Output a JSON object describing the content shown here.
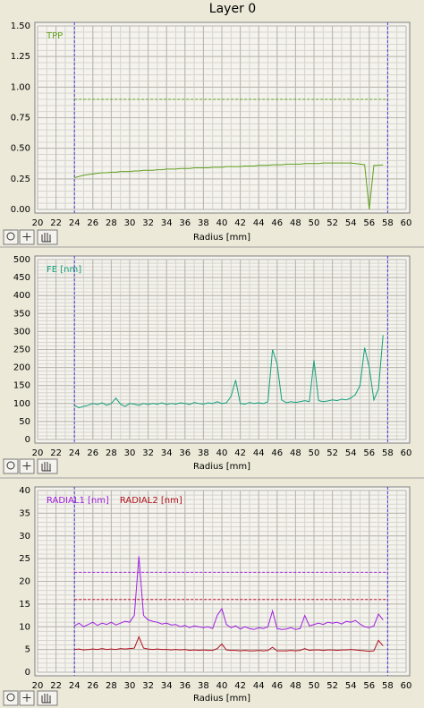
{
  "window": {
    "title": "Layer 0"
  },
  "chart_data": [
    {
      "type": "line",
      "x_label": "Radius [mm]",
      "grid": true,
      "xminor": 1,
      "yminor": 0.05,
      "xlim": [
        20,
        60
      ],
      "xticks": [
        20,
        22,
        24,
        26,
        28,
        30,
        32,
        34,
        36,
        38,
        40,
        42,
        44,
        46,
        48,
        50,
        52,
        54,
        56,
        58,
        60
      ],
      "ylim": [
        0,
        1.5
      ],
      "yticks": [
        {
          "value": 0,
          "label": "0.00"
        },
        {
          "value": 0.25,
          "label": "0.25"
        },
        {
          "value": 0.5,
          "label": "0.50"
        },
        {
          "value": 0.75,
          "label": "0.75"
        },
        {
          "value": 1,
          "label": "1.00"
        },
        {
          "value": 1.25,
          "label": "1.25"
        },
        {
          "value": 1.5,
          "label": "1.50"
        }
      ],
      "vlines": [
        24,
        58
      ],
      "vline_color": "#4a3adc",
      "hlines": [
        {
          "value": 0.9,
          "color": "#5fa01e"
        }
      ],
      "x": [
        24,
        24.5,
        25,
        25.5,
        26,
        26.5,
        27,
        27.5,
        28,
        28.5,
        29,
        29.5,
        30,
        30.5,
        31,
        31.5,
        32,
        32.5,
        33,
        33.5,
        34,
        34.5,
        35,
        35.5,
        36,
        36.5,
        37,
        37.5,
        38,
        38.5,
        39,
        39.5,
        40,
        40.5,
        41,
        41.5,
        42,
        42.5,
        43,
        43.5,
        44,
        44.5,
        45,
        45.5,
        46,
        46.5,
        47,
        47.5,
        48,
        48.5,
        49,
        49.5,
        50,
        50.5,
        51,
        51.5,
        52,
        52.5,
        53,
        53.5,
        54,
        54.5,
        55,
        55.5,
        56,
        56.5,
        57,
        57.5
      ],
      "series": [
        {
          "name": "TPP",
          "color": "#5fa01e",
          "values": [
            0.26,
            0.27,
            0.28,
            0.285,
            0.29,
            0.295,
            0.3,
            0.3,
            0.305,
            0.305,
            0.31,
            0.31,
            0.31,
            0.315,
            0.315,
            0.32,
            0.32,
            0.32,
            0.325,
            0.325,
            0.33,
            0.33,
            0.33,
            0.335,
            0.335,
            0.335,
            0.34,
            0.34,
            0.34,
            0.34,
            0.345,
            0.345,
            0.345,
            0.35,
            0.35,
            0.35,
            0.35,
            0.355,
            0.355,
            0.355,
            0.36,
            0.36,
            0.36,
            0.365,
            0.365,
            0.365,
            0.37,
            0.37,
            0.37,
            0.37,
            0.375,
            0.375,
            0.375,
            0.375,
            0.38,
            0.38,
            0.38,
            0.38,
            0.38,
            0.38,
            0.38,
            0.375,
            0.37,
            0.365,
            0,
            0.36,
            0.36,
            0.365
          ]
        }
      ]
    },
    {
      "type": "line",
      "x_label": "Radius [mm]",
      "grid": true,
      "xminor": 1,
      "yminor": 10,
      "xlim": [
        20,
        60
      ],
      "xticks": [
        20,
        22,
        24,
        26,
        28,
        30,
        32,
        34,
        36,
        38,
        40,
        42,
        44,
        46,
        48,
        50,
        52,
        54,
        56,
        58,
        60
      ],
      "ylim": [
        0,
        500
      ],
      "yticks": [
        0,
        50,
        100,
        150,
        200,
        250,
        300,
        350,
        400,
        450,
        500
      ],
      "vlines": [
        24,
        58
      ],
      "vline_color": "#4a3adc",
      "hlines": [],
      "x": [
        24,
        24.5,
        25,
        25.5,
        26,
        26.5,
        27,
        27.5,
        28,
        28.5,
        29,
        29.5,
        30,
        30.5,
        31,
        31.5,
        32,
        32.5,
        33,
        33.5,
        34,
        34.5,
        35,
        35.5,
        36,
        36.5,
        37,
        37.5,
        38,
        38.5,
        39,
        39.5,
        40,
        40.5,
        41,
        41.5,
        42,
        42.5,
        43,
        43.5,
        44,
        44.5,
        45,
        45.5,
        46,
        46.5,
        47,
        47.5,
        48,
        48.5,
        49,
        49.5,
        50,
        50.5,
        51,
        51.5,
        52,
        52.5,
        53,
        53.5,
        54,
        54.5,
        55,
        55.5,
        56,
        56.5,
        57,
        57.5
      ],
      "series": [
        {
          "name": "FE [nm]",
          "color": "#14a07e",
          "values": [
            95,
            88,
            92,
            95,
            100,
            97,
            102,
            95,
            100,
            115,
            98,
            92,
            100,
            98,
            95,
            100,
            97,
            100,
            98,
            102,
            97,
            100,
            98,
            102,
            100,
            97,
            103,
            100,
            98,
            102,
            100,
            105,
            100,
            102,
            120,
            165,
            100,
            98,
            103,
            100,
            102,
            100,
            105,
            250,
            210,
            110,
            102,
            105,
            103,
            105,
            108,
            105,
            220,
            108,
            105,
            107,
            110,
            108,
            112,
            110,
            115,
            125,
            150,
            255,
            200,
            110,
            140,
            290
          ]
        }
      ]
    },
    {
      "type": "line",
      "x_label": "Radius [mm]",
      "grid": true,
      "xminor": 1,
      "yminor": 1,
      "xlim": [
        20,
        60
      ],
      "xticks": [
        20,
        22,
        24,
        26,
        28,
        30,
        32,
        34,
        36,
        38,
        40,
        42,
        44,
        46,
        48,
        50,
        52,
        54,
        56,
        58,
        60
      ],
      "ylim": [
        0,
        40
      ],
      "yticks": [
        0,
        5,
        10,
        15,
        20,
        25,
        30,
        35,
        40
      ],
      "vlines": [
        24,
        58
      ],
      "vline_color": "#4a3adc",
      "hlines": [
        {
          "value": 22,
          "color": "#a020e0"
        },
        {
          "value": 16,
          "color": "#c01030"
        }
      ],
      "x": [
        24,
        24.5,
        25,
        25.5,
        26,
        26.5,
        27,
        27.5,
        28,
        28.5,
        29,
        29.5,
        30,
        30.5,
        31,
        31.5,
        32,
        32.5,
        33,
        33.5,
        34,
        34.5,
        35,
        35.5,
        36,
        36.5,
        37,
        37.5,
        38,
        38.5,
        39,
        39.5,
        40,
        40.5,
        41,
        41.5,
        42,
        42.5,
        43,
        43.5,
        44,
        44.5,
        45,
        45.5,
        46,
        46.5,
        47,
        47.5,
        48,
        48.5,
        49,
        49.5,
        50,
        50.5,
        51,
        51.5,
        52,
        52.5,
        53,
        53.5,
        54,
        54.5,
        55,
        55.5,
        56,
        56.5,
        57,
        57.5
      ],
      "series": [
        {
          "name": "RADIAL1 [nm]",
          "color": "#a020e0",
          "values": [
            10.2,
            10.8,
            10,
            10.5,
            11,
            10.3,
            10.8,
            10.5,
            11,
            10.4,
            10.8,
            11.2,
            11,
            12.5,
            25.5,
            12.5,
            11.5,
            11.2,
            11,
            10.6,
            10.8,
            10.4,
            10.5,
            10,
            10.3,
            9.8,
            10.2,
            10,
            9.8,
            10,
            9.6,
            12.5,
            14,
            10.5,
            9.8,
            10.2,
            9.5,
            10,
            9.6,
            9.4,
            9.8,
            9.6,
            10,
            13.5,
            9.6,
            9.4,
            9.5,
            9.8,
            9.4,
            9.6,
            12.5,
            10.2,
            10.5,
            10.8,
            10.5,
            11,
            10.8,
            11,
            10.6,
            11.2,
            11,
            11.4,
            10.6,
            10,
            9.8,
            10.2,
            12.8,
            11.5
          ]
        },
        {
          "name": "RADIAL2 [nm]",
          "color": "#b0101e",
          "values": [
            5,
            5.1,
            4.9,
            5,
            5.1,
            5,
            5.2,
            5,
            5.1,
            5,
            5.2,
            5.1,
            5.2,
            5.3,
            7.8,
            5.3,
            5.1,
            5,
            5.1,
            5,
            5,
            4.9,
            5,
            4.9,
            5,
            4.8,
            4.9,
            4.8,
            4.9,
            4.8,
            4.8,
            5.2,
            6.2,
            4.9,
            4.8,
            4.8,
            4.7,
            4.8,
            4.7,
            4.7,
            4.8,
            4.7,
            4.8,
            5.5,
            4.7,
            4.7,
            4.7,
            4.8,
            4.7,
            4.8,
            5.2,
            4.8,
            4.9,
            4.9,
            4.8,
            4.9,
            4.9,
            4.8,
            4.9,
            4.9,
            5,
            4.9,
            4.8,
            4.7,
            4.6,
            4.7,
            7,
            5.8
          ]
        }
      ]
    }
  ]
}
